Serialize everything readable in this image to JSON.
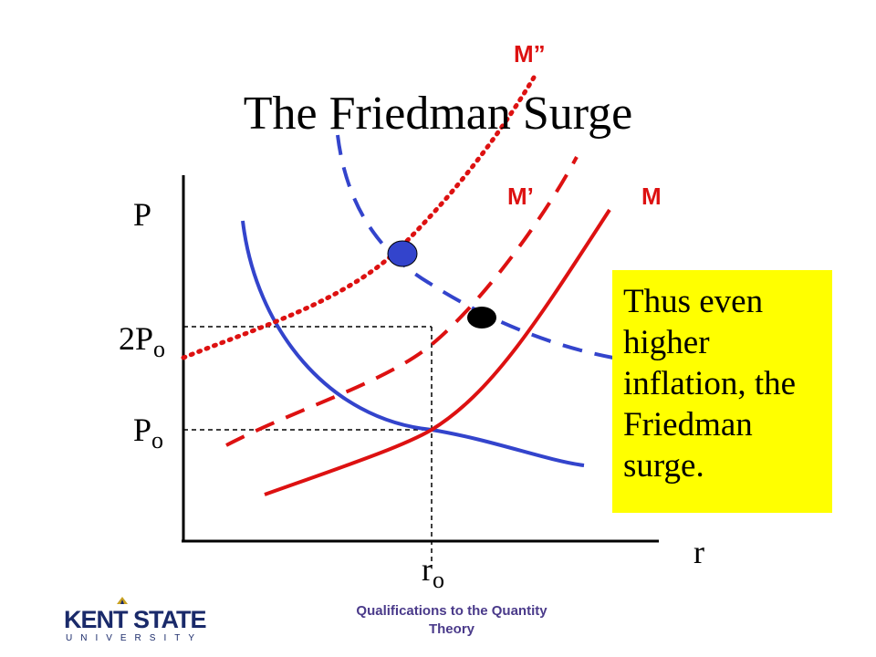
{
  "title": "The Friedman Surge",
  "axes": {
    "y_label": "P",
    "x_label": "r",
    "y_tick_2p_main": "2P",
    "y_tick_2p_sub": "o",
    "y_tick_p_main": "P",
    "y_tick_p_sub": "o",
    "x_tick_main": "r",
    "x_tick_sub": "o"
  },
  "curves": {
    "m_label": "M",
    "m_prime_label": "M’",
    "m_double_prime_label": "M”"
  },
  "callout_text": "Thus even higher inflation, the Friedman surge.",
  "footer": {
    "line1": "Qualifications to the Quantity",
    "line2": "Theory"
  },
  "logo": {
    "word": "KENT STATE",
    "sub": "UNIVERSITY"
  },
  "colors": {
    "supply_curves": "#dd1111",
    "demand_curves": "#3344cc",
    "callout_bg": "#ffff00"
  }
}
